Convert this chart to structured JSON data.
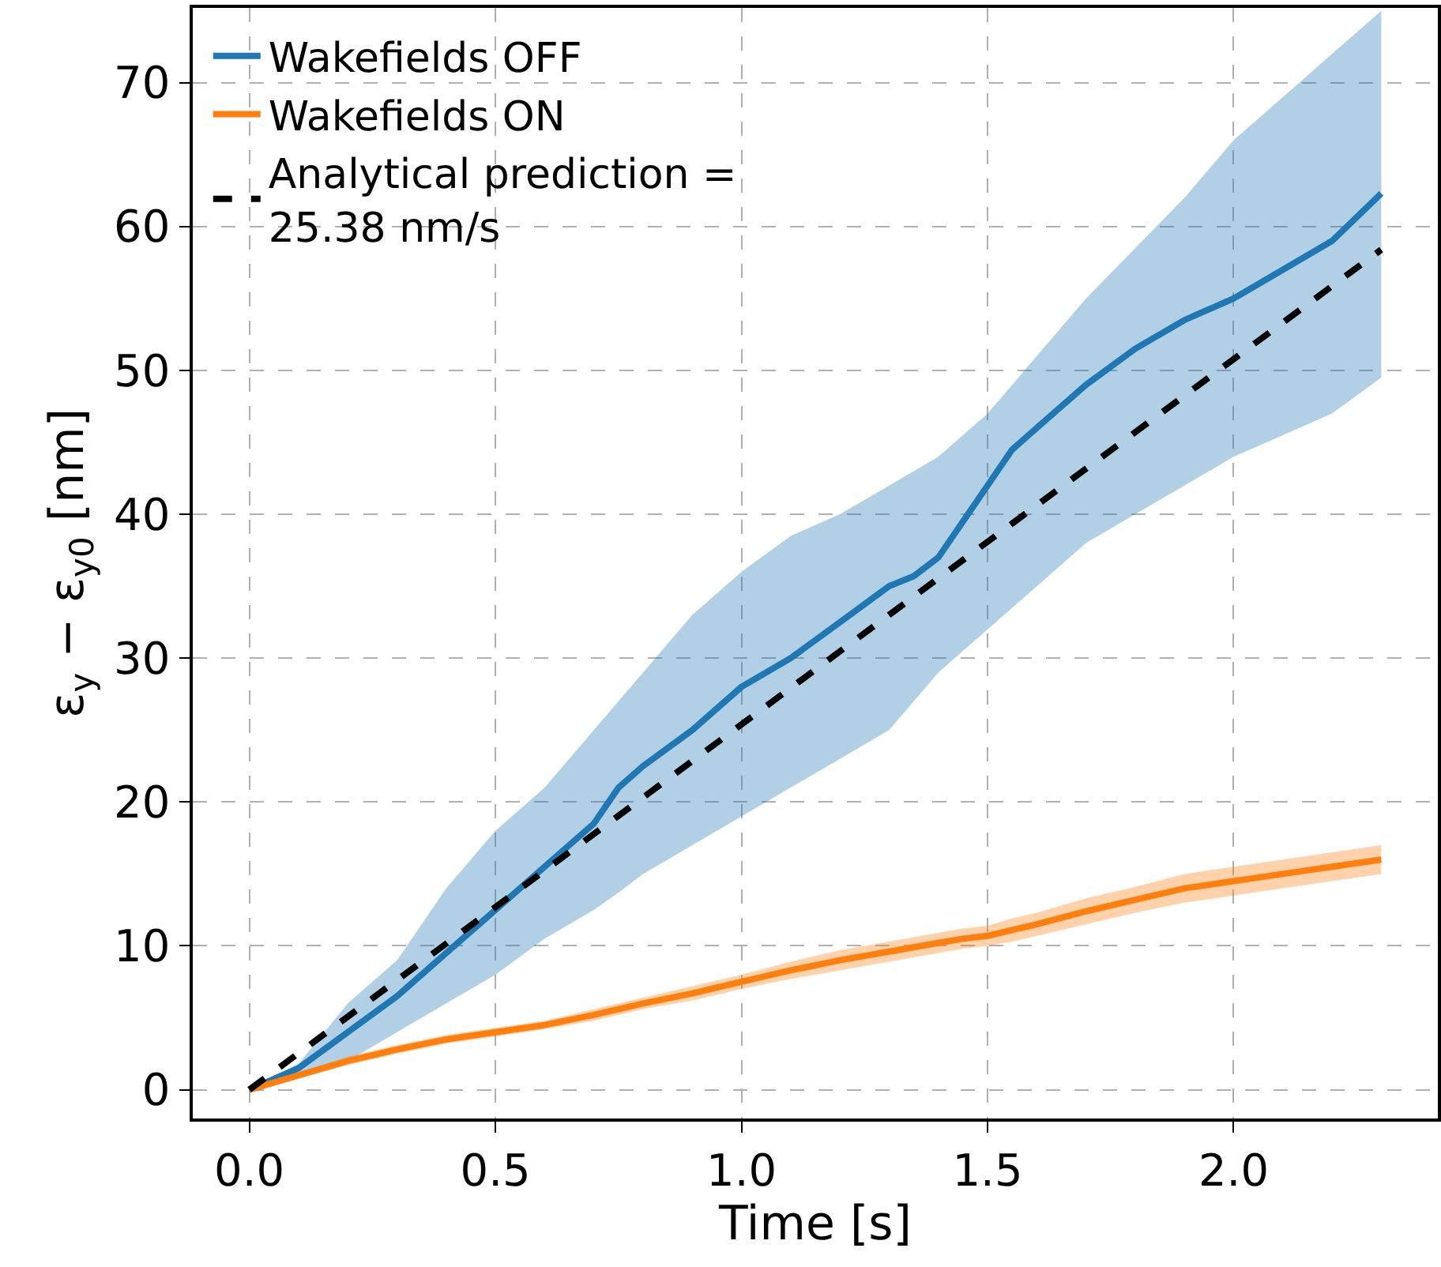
{
  "chart_data": {
    "type": "line",
    "xlabel": "Time [s]",
    "ylabel": "ε$_{y}$ − ε$_{y0}$ [nm]",
    "x": [
      0,
      0.1,
      0.2,
      0.3,
      0.4,
      0.5,
      0.6,
      0.7,
      0.75,
      0.8,
      0.9,
      1.0,
      1.1,
      1.2,
      1.3,
      1.35,
      1.4,
      1.45,
      1.5,
      1.55,
      1.6,
      1.7,
      1.8,
      1.9,
      2.0,
      2.1,
      2.2,
      2.3
    ],
    "series": [
      {
        "name": "Wakefields OFF",
        "color": "#1f77b4",
        "values": [
          0,
          1.5,
          4,
          6.5,
          9.5,
          12.5,
          15.5,
          18.5,
          21,
          22.5,
          25,
          28,
          30,
          32.5,
          35,
          35.7,
          37,
          39.5,
          42,
          44.5,
          46,
          49,
          51.5,
          53.5,
          55,
          57,
          59,
          62.3
        ],
        "lower": [
          0,
          1.2,
          2,
          4,
          6,
          8,
          10.5,
          12.5,
          13.7,
          15,
          17,
          19,
          21,
          23,
          25,
          27,
          29,
          30.5,
          32,
          33.5,
          35,
          38,
          40,
          42,
          44,
          45.5,
          47,
          49.5
        ],
        "upper": [
          0,
          1.8,
          6,
          9,
          14,
          18,
          21,
          25,
          27,
          29,
          33,
          36,
          38.5,
          40,
          42,
          43,
          44,
          45.5,
          47,
          49,
          51,
          55,
          58.5,
          62,
          66,
          69,
          72,
          75
        ]
      },
      {
        "name": "Wakefields ON",
        "color": "#ff7f0e",
        "values": [
          0,
          1,
          2,
          2.8,
          3.5,
          4,
          4.5,
          5.2,
          5.6,
          6,
          6.7,
          7.5,
          8.3,
          9,
          9.6,
          9.9,
          10.2,
          10.5,
          10.7,
          11.1,
          11.5,
          12.4,
          13.2,
          14,
          14.5,
          15,
          15.5,
          16
        ],
        "lower": [
          0,
          0.8,
          1.7,
          2.5,
          3.2,
          3.7,
          4.2,
          4.8,
          5.2,
          5.6,
          6.2,
          7,
          7.7,
          8.3,
          8.9,
          9.2,
          9.5,
          9.8,
          10,
          10.3,
          10.7,
          11.5,
          12.3,
          13,
          13.5,
          14,
          14.5,
          15
        ],
        "upper": [
          0,
          1.2,
          2.3,
          3.1,
          3.8,
          4.3,
          4.8,
          5.6,
          6,
          6.4,
          7.2,
          8,
          8.9,
          9.7,
          10.3,
          10.6,
          10.9,
          11.2,
          11.4,
          11.9,
          12.3,
          13.3,
          14.1,
          15,
          15.5,
          16,
          16.5,
          17
        ]
      },
      {
        "name": "Analytical prediction =\n25.38 nm/s",
        "color": "#000000",
        "line_style": "dashed",
        "x": [
          0,
          2.3
        ],
        "values": [
          0,
          58.4
        ]
      }
    ],
    "xlim": [
      -0.115,
      2.415
    ],
    "ylim": [
      -2,
      75.2
    ],
    "xticks": [
      {
        "value": 0,
        "label": "0.0"
      },
      {
        "value": 0.5,
        "label": "0.5"
      },
      {
        "value": 1,
        "label": "1.0"
      },
      {
        "value": 1.5,
        "label": "1.5"
      },
      {
        "value": 2,
        "label": "2.0"
      }
    ],
    "yticks": [
      0,
      10,
      20,
      30,
      40,
      50,
      60,
      70
    ],
    "grid": true,
    "legend": "top left",
    "line_style": "solid"
  }
}
